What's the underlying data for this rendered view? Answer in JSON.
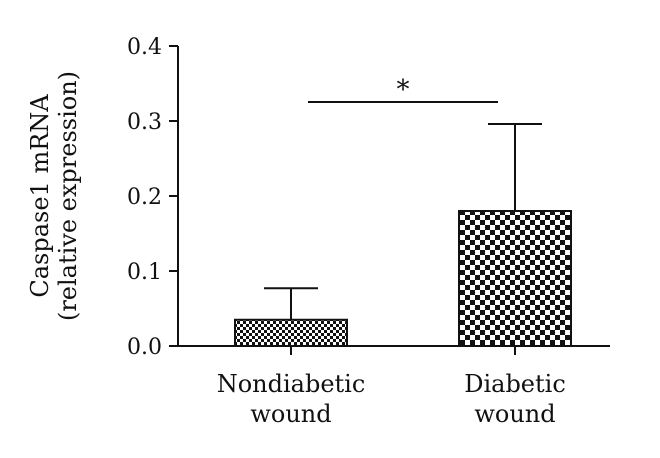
{
  "chart_data": {
    "type": "bar",
    "title": "",
    "categories": [
      [
        "Nondiabetic",
        "wound"
      ],
      [
        "Diabetic",
        "wound"
      ]
    ],
    "values": [
      0.035,
      0.18
    ],
    "error_upper": [
      0.077,
      0.296
    ],
    "ylabel": [
      "Caspase1 mRNA",
      "(relative expression)"
    ],
    "ylim": [
      0,
      0.4
    ],
    "yticks": [
      "0.0",
      "0.1",
      "0.2",
      "0.3",
      "0.4"
    ],
    "ytick_values": [
      0,
      0.1,
      0.2,
      0.3,
      0.4
    ],
    "grid": false,
    "legend": "none",
    "bar_patterns": [
      "fine-checker",
      "coarse-checker"
    ],
    "significance": {
      "between": [
        0,
        1
      ],
      "label": "*"
    }
  }
}
